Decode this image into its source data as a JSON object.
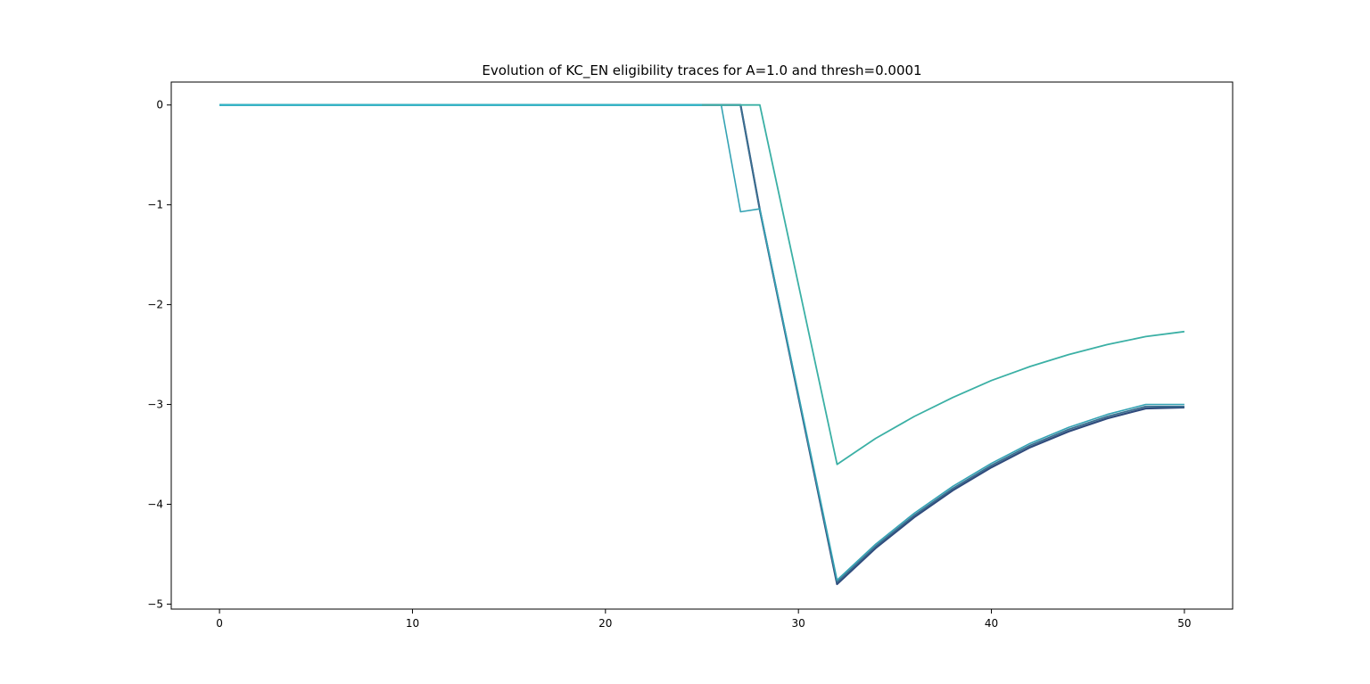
{
  "chart_data": {
    "type": "line",
    "title": "Evolution of KC_EN eligibility traces for A=1.0 and thresh=0.0001",
    "xlabel": "",
    "ylabel": "",
    "xlim": [
      -2.5,
      52.5
    ],
    "ylim": [
      -5.05,
      0.23
    ],
    "xticks": [
      0,
      10,
      20,
      30,
      40,
      50
    ],
    "yticks": [
      0,
      -1,
      -2,
      -3,
      -4,
      -5
    ],
    "xtick_labels": [
      "0",
      "10",
      "20",
      "30",
      "40",
      "50"
    ],
    "ytick_labels": [
      "0",
      "−1",
      "−2",
      "−3",
      "−4",
      "−5"
    ],
    "grid": false,
    "legend": "none",
    "series": [
      {
        "color": "#2f4b7c",
        "width": 2.2,
        "points": [
          [
            0,
            0
          ],
          [
            27,
            0
          ],
          [
            28,
            -1.05
          ],
          [
            32,
            -4.8
          ],
          [
            34,
            -4.44
          ],
          [
            36,
            -4.13
          ],
          [
            38,
            -3.86
          ],
          [
            40,
            -3.63
          ],
          [
            42,
            -3.43
          ],
          [
            44,
            -3.27
          ],
          [
            46,
            -3.14
          ],
          [
            48,
            -3.04
          ],
          [
            50,
            -3.03
          ]
        ]
      },
      {
        "color": "#3a6e8f",
        "width": 1.8,
        "points": [
          [
            0,
            0
          ],
          [
            27,
            0
          ],
          [
            28,
            -1.05
          ],
          [
            32,
            -4.78
          ],
          [
            34,
            -4.42
          ],
          [
            36,
            -4.11
          ],
          [
            38,
            -3.84
          ],
          [
            40,
            -3.61
          ],
          [
            42,
            -3.41
          ],
          [
            44,
            -3.25
          ],
          [
            46,
            -3.12
          ],
          [
            48,
            -3.02
          ],
          [
            50,
            -3.02
          ]
        ]
      },
      {
        "color": "#35a3b4",
        "width": 1.6,
        "points": [
          [
            0,
            0
          ],
          [
            26,
            0
          ],
          [
            27,
            -1.07
          ],
          [
            28,
            -1.04
          ],
          [
            32,
            -4.76
          ],
          [
            34,
            -4.4
          ],
          [
            36,
            -4.09
          ],
          [
            38,
            -3.82
          ],
          [
            40,
            -3.59
          ],
          [
            42,
            -3.39
          ],
          [
            44,
            -3.23
          ],
          [
            46,
            -3.1
          ],
          [
            48,
            -3.0
          ],
          [
            50,
            -3.0
          ]
        ]
      },
      {
        "color": "#3bb0a5",
        "width": 1.8,
        "points": [
          [
            0,
            0
          ],
          [
            28,
            0
          ],
          [
            32,
            -3.6
          ],
          [
            34,
            -3.34
          ],
          [
            36,
            -3.12
          ],
          [
            38,
            -2.93
          ],
          [
            40,
            -2.76
          ],
          [
            42,
            -2.62
          ],
          [
            44,
            -2.5
          ],
          [
            46,
            -2.4
          ],
          [
            48,
            -2.32
          ],
          [
            50,
            -2.27
          ]
        ]
      },
      {
        "color": "#2fb6c9",
        "width": 2.0,
        "points": [
          [
            0,
            0
          ],
          [
            25,
            0
          ]
        ]
      }
    ]
  }
}
